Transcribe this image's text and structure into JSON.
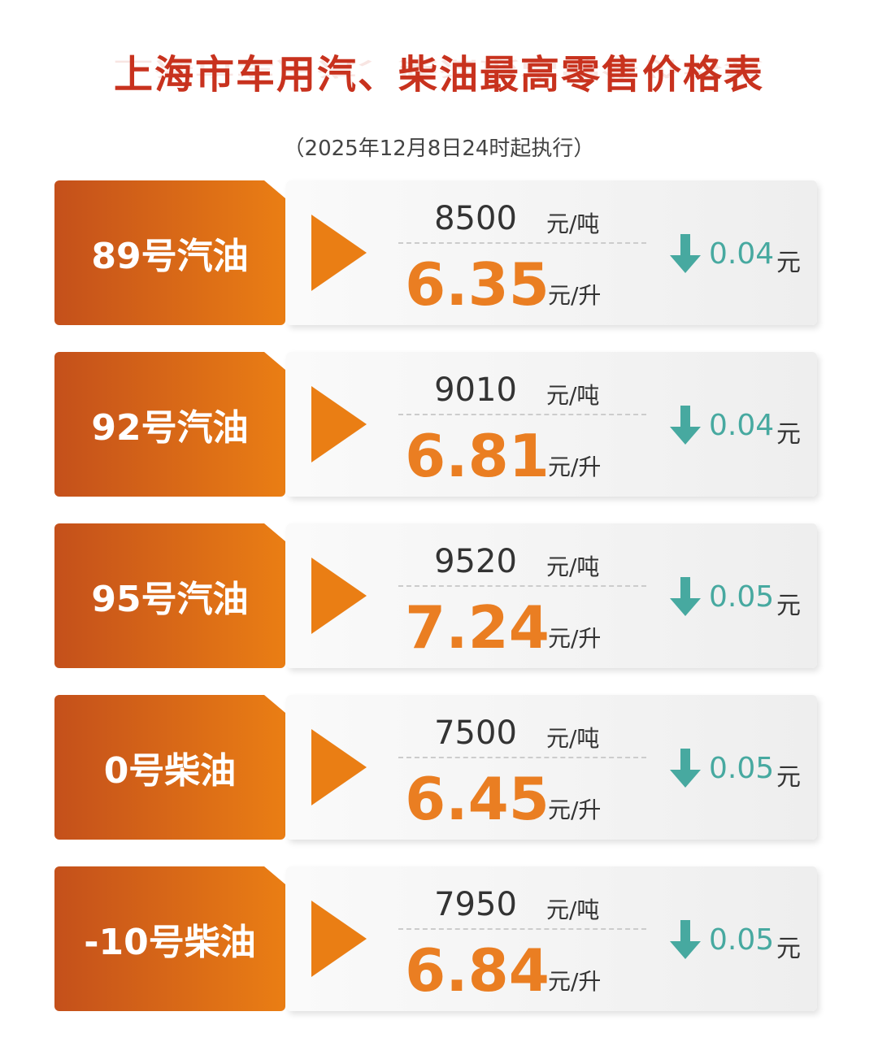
{
  "header": {
    "title": "上海市车用汽、柴油最高零售价格表",
    "subtitle": "（2025年12月8日24时起执行）"
  },
  "rows": [
    {
      "name": "89号汽油",
      "per_ton": "8500",
      "ton_unit": "元/吨",
      "per_liter": "6.35",
      "liter_unit": "元/升",
      "change": "0.04",
      "change_unit": "元"
    },
    {
      "name": "92号汽油",
      "per_ton": "9010",
      "ton_unit": "元/吨",
      "per_liter": "6.81",
      "liter_unit": "元/升",
      "change": "0.04",
      "change_unit": "元"
    },
    {
      "name": "95号汽油",
      "per_ton": "9520",
      "ton_unit": "元/吨",
      "per_liter": "7.24",
      "liter_unit": "元/升",
      "change": "0.05",
      "change_unit": "元"
    },
    {
      "name": "0号柴油",
      "per_ton": "7500",
      "ton_unit": "元/吨",
      "per_liter": "6.45",
      "liter_unit": "元/升",
      "change": "0.05",
      "change_unit": "元"
    },
    {
      "name": "-10号柴油",
      "per_ton": "7950",
      "ton_unit": "元/吨",
      "per_liter": "6.84",
      "liter_unit": "元/升",
      "change": "0.05",
      "change_unit": "元"
    }
  ]
}
